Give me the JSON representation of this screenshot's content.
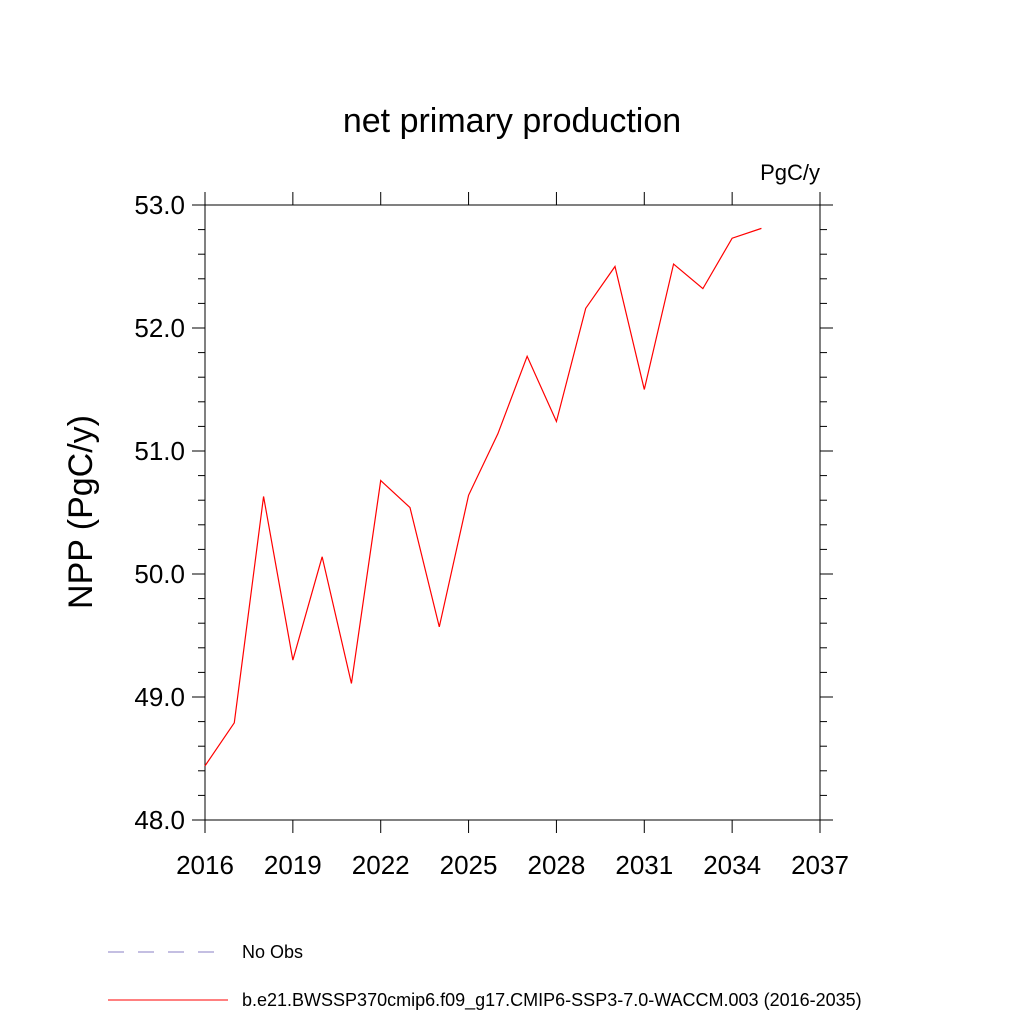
{
  "chart_data": {
    "type": "line",
    "title": "net primary production",
    "units": "PgC/y",
    "ylabel": "NPP  (PgC/y)",
    "xlim": [
      2016,
      2037
    ],
    "ylim": [
      48.0,
      53.0
    ],
    "x_ticks": [
      2016,
      2019,
      2022,
      2025,
      2028,
      2031,
      2034,
      2037
    ],
    "x_tick_labels": [
      "2016",
      "2019",
      "2022",
      "2025",
      "2028",
      "2031",
      "2034",
      "2037"
    ],
    "y_ticks": [
      48.0,
      49.0,
      50.0,
      51.0,
      52.0,
      53.0
    ],
    "y_tick_labels": [
      "48.0",
      "49.0",
      "50.0",
      "51.0",
      "52.0",
      "53.0"
    ],
    "grid": false,
    "legend_placement": "bottom",
    "series": [
      {
        "name": "b.e21.BWSSP370cmip6.f09_g17.CMIP6-SSP3-7.0-WACCM.003 (2016-2035)",
        "color": "#ff0000",
        "x": [
          2016,
          2017,
          2018,
          2019,
          2020,
          2021,
          2022,
          2023,
          2024,
          2025,
          2026,
          2027,
          2028,
          2029,
          2030,
          2031,
          2032,
          2033,
          2034,
          2035
        ],
        "y": [
          48.44,
          48.79,
          50.63,
          49.3,
          50.14,
          49.11,
          50.76,
          50.54,
          49.57,
          50.64,
          51.14,
          51.77,
          51.24,
          52.16,
          52.5,
          51.5,
          52.52,
          52.32,
          52.73,
          52.81
        ]
      }
    ],
    "legend": [
      {
        "label": "No Obs",
        "style": "dashed",
        "color": "#8a7fc4"
      },
      {
        "label": "b.e21.BWSSP370cmip6.f09_g17.CMIP6-SSP3-7.0-WACCM.003 (2016-2035)",
        "style": "solid",
        "color": "#ff0000"
      }
    ]
  }
}
